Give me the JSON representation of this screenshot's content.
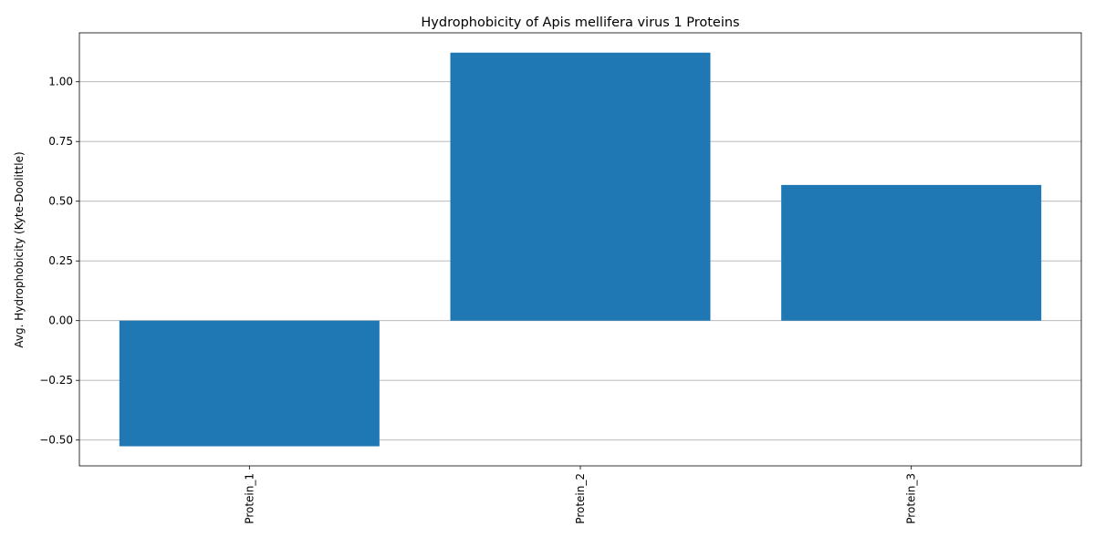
{
  "chart_data": {
    "type": "bar",
    "title": "Hydrophobicity of Apis mellifera virus 1 Proteins",
    "xlabel": "",
    "ylabel": "Avg. Hydrophobicity (Kyte-Doolittle)",
    "categories": [
      "Protein_1",
      "Protein_2",
      "Protein_3"
    ],
    "values": [
      -0.526,
      1.122,
      0.568
    ],
    "ylim": [
      -0.608,
      1.205
    ],
    "yticks": [
      -0.5,
      -0.25,
      0.0,
      0.25,
      0.5,
      0.75,
      1.0
    ],
    "ytick_labels": [
      "−0.50",
      "−0.25",
      "0.00",
      "0.25",
      "0.50",
      "0.75",
      "1.00"
    ],
    "bar_color": "#1f77b4",
    "grid": "y",
    "legend": "none"
  }
}
